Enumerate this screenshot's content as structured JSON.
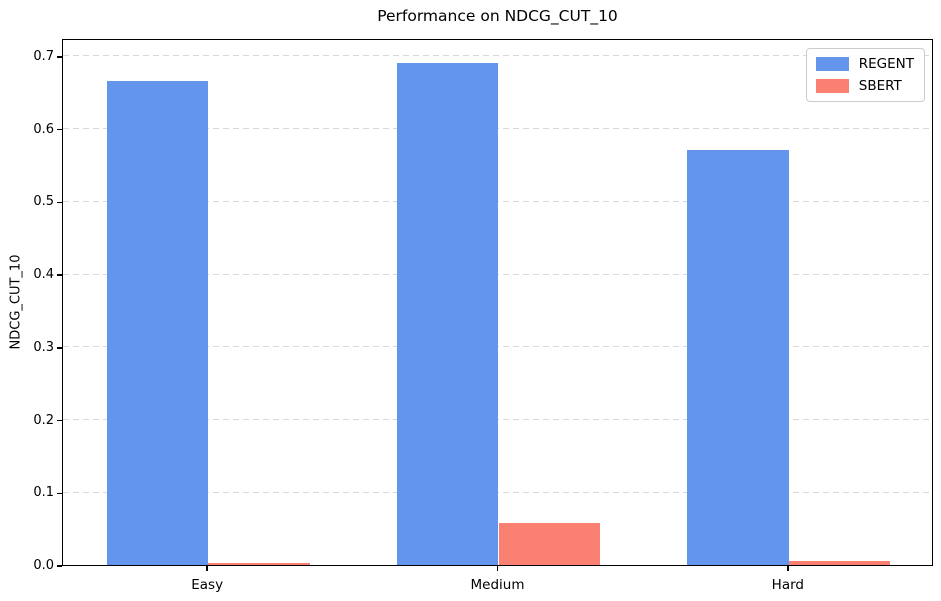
{
  "title": "Performance on NDCG_CUT_10",
  "chart_data": {
    "type": "bar",
    "title": "Performance on NDCG_CUT_10",
    "categories": [
      "Easy",
      "Medium",
      "Hard"
    ],
    "series": [
      {
        "name": "REGENT",
        "color": "#6495ED",
        "values": [
          0.665,
          0.69,
          0.57
        ]
      },
      {
        "name": "SBERT",
        "color": "#FA8072",
        "values": [
          0.003,
          0.058,
          0.005
        ]
      }
    ],
    "xlabel": "",
    "ylabel": "NDCG_CUT_10",
    "ylim": [
      0,
      0.7245
    ],
    "yticks": [
      0.0,
      0.1,
      0.2,
      0.3,
      0.4,
      0.5,
      0.6,
      0.7
    ],
    "ytick_labels": [
      "0.0",
      "0.1",
      "0.2",
      "0.3",
      "0.4",
      "0.5",
      "0.6",
      "0.7"
    ],
    "bar_group_width_fraction": 0.7,
    "grid": "horizontal-dashed",
    "grid_color": "#d9d9d9",
    "axis_color": "#000000",
    "background_color": "#ffffff",
    "legend_position": "upper-right",
    "legend_border_color": "#cccccc"
  }
}
